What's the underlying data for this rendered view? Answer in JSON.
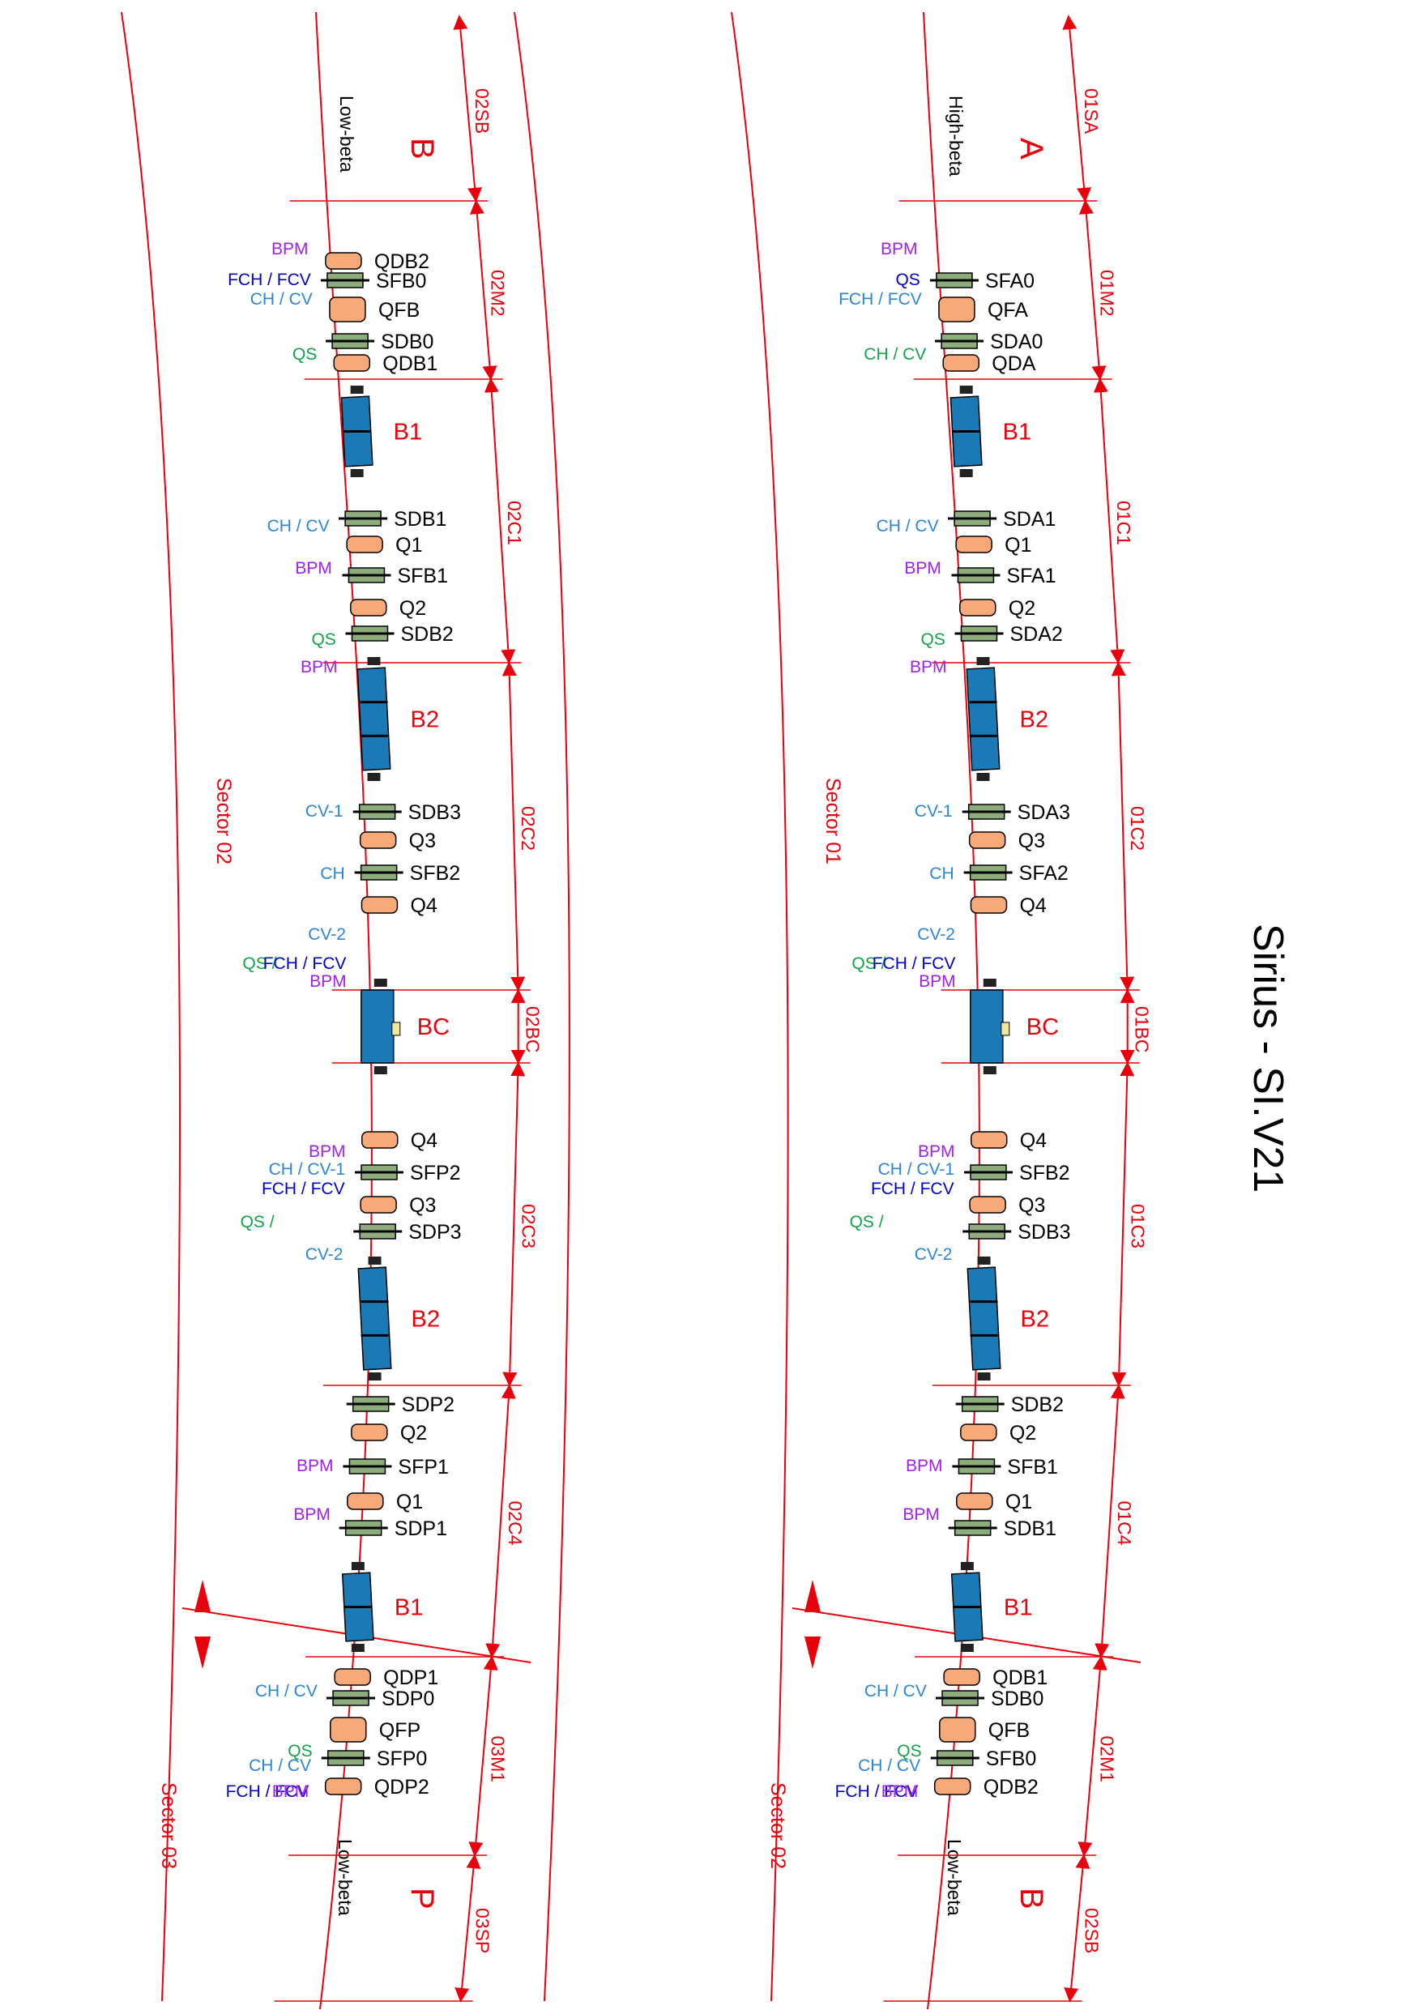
{
  "title": "Sirius - SI.V21",
  "colors": {
    "red": "#e8000d",
    "quad": "#f7a978",
    "sext": "#8cad7b",
    "dipole": "#1a7ab5",
    "bpm": "#a020f0",
    "qs": "#12a34a",
    "ch": "#2b86d8",
    "fch": "#0000c8"
  },
  "left": {
    "sector_labels": [
      "Sector 02",
      "Sector 03"
    ],
    "top_letter": "B",
    "top_beta": "Low-beta",
    "bottom_letter": "P",
    "bottom_beta": "Low-beta",
    "bend_labels": [
      "B1",
      "B2",
      "BC",
      "B2",
      "B1"
    ],
    "dim_labels": [
      "02SB",
      "02M2",
      "02C1",
      "02C2",
      "02BC",
      "02C3",
      "02C4",
      "03M1",
      "03SP"
    ],
    "magnets": [
      "QDB2",
      "SFB0",
      "QFB",
      "SDB0",
      "QDB1",
      "SDB1",
      "Q1",
      "SFB1",
      "Q2",
      "SDB2",
      "SDB3",
      "Q3",
      "SFB2",
      "Q4",
      "Q4",
      "SFP2",
      "Q3",
      "SDP3",
      "SDP2",
      "Q2",
      "SFP1",
      "Q1",
      "SDP1",
      "QDP1",
      "SDP0",
      "QFP",
      "SFP0",
      "QDP2"
    ],
    "correctors": [
      "BPM",
      "FCH / FCV",
      "CH / CV",
      "QS",
      "CH / CV",
      "BPM",
      "QS",
      "BPM",
      "CV-1",
      "CH",
      "CV-2",
      "QS /",
      "FCH / FCV",
      "BPM",
      "BPM",
      "CH / CV-1",
      "FCH / FCV",
      "QS /",
      "CV-2",
      "BPM",
      "BPM",
      "CH / CV",
      "QS",
      "CH / CV",
      "FCH / FCV",
      "BPM"
    ]
  },
  "right": {
    "sector_labels": [
      "Sector 01",
      "Sector 02"
    ],
    "top_letter": "A",
    "top_beta": "High-beta",
    "bottom_letter": "B",
    "bottom_beta": "Low-beta",
    "bend_labels": [
      "B1",
      "B2",
      "BC",
      "B2",
      "B1"
    ],
    "dim_labels": [
      "01SA",
      "01M2",
      "01C1",
      "01C2",
      "01BC",
      "01C3",
      "01C4",
      "02M1",
      "02SB"
    ],
    "magnets": [
      "SFA0",
      "QFA",
      "SDA0",
      "QDA",
      "SDA1",
      "Q1",
      "SFA1",
      "Q2",
      "SDA2",
      "SDA3",
      "Q3",
      "SFA2",
      "Q4",
      "Q4",
      "SFB2",
      "Q3",
      "SDB3",
      "SDB2",
      "Q2",
      "SFB1",
      "Q1",
      "SDB1",
      "QDB1",
      "SDB0",
      "QFB",
      "SFB0",
      "QDB2"
    ],
    "correctors": [
      "BPM",
      "QS",
      "FCH / FCV",
      "CH / CV",
      "CH / CV",
      "BPM",
      "QS",
      "BPM",
      "CV-1",
      "CH",
      "CV-2",
      "QS /",
      "FCH / FCV",
      "BPM",
      "BPM",
      "CH / CV-1",
      "FCH / FCV",
      "QS /",
      "CV-2",
      "BPM",
      "BPM",
      "CH / CV",
      "QS",
      "CH / CV",
      "FCH / FCV",
      "BPM"
    ]
  }
}
